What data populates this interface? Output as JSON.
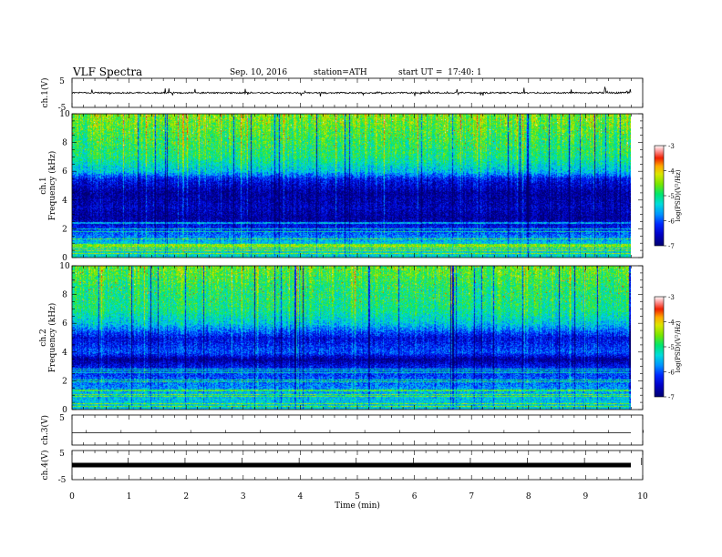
{
  "header": {
    "title": "VLF Spectra",
    "date": "Sep. 10, 2016",
    "station": "station=ATH",
    "start": "start UT =  17:40: 1"
  },
  "chart_data": [
    {
      "type": "line",
      "panel": "ch1-waveform",
      "ylabel": "ch.1(V)",
      "yticks": [
        "5",
        "-5"
      ],
      "ylim": [
        -5,
        5
      ],
      "xlim": [
        0,
        10
      ],
      "description_values": {
        "baseline": 0,
        "typical_amplitude": 0.5,
        "spike_amplitude": 1.5
      }
    },
    {
      "type": "heatmap",
      "panel": "ch1-spectrogram",
      "ylabel": "ch.1\nFrequency (kHz)",
      "ylabel_line1": "ch.1",
      "ylabel_line2": "Frequency (kHz)",
      "yticks": [
        "0",
        "2",
        "4",
        "6",
        "8",
        "10"
      ],
      "ylim": [
        0,
        10
      ],
      "xlim": [
        0,
        9.8
      ],
      "colorbar": {
        "label": "log(PSD)(V²/Hz)",
        "ticks": [
          "-3",
          "-4",
          "-5",
          "-6",
          "-7"
        ],
        "range": [
          -7,
          -3
        ]
      },
      "profile": [
        {
          "f": 0.0,
          "v": -5.3
        },
        {
          "f": 1.0,
          "v": -5.4
        },
        {
          "f": 2.0,
          "v": -6.2
        },
        {
          "f": 2.8,
          "v": -6.8
        },
        {
          "f": 3.5,
          "v": -6.6
        },
        {
          "f": 4.5,
          "v": -6.8
        },
        {
          "f": 5.5,
          "v": -6.3
        },
        {
          "f": 6.0,
          "v": -5.5
        },
        {
          "f": 7.0,
          "v": -5.0
        },
        {
          "f": 8.5,
          "v": -4.8
        },
        {
          "f": 10.0,
          "v": -4.5
        }
      ]
    },
    {
      "type": "heatmap",
      "panel": "ch2-spectrogram",
      "ylabel": "ch.2\nFrequency (kHz)",
      "ylabel_line1": "ch.2",
      "ylabel_line2": "Frequency (kHz)",
      "yticks": [
        "0",
        "2",
        "4",
        "6",
        "8",
        "10"
      ],
      "ylim": [
        0,
        10
      ],
      "xlim": [
        0,
        9.8
      ],
      "colorbar": {
        "label": "log(PSD)(V²/Hz)",
        "ticks": [
          "-3",
          "-4",
          "-5",
          "-6",
          "-7"
        ],
        "range": [
          -7,
          -3
        ]
      },
      "profile": [
        {
          "f": 0.0,
          "v": -5.4
        },
        {
          "f": 1.0,
          "v": -5.5
        },
        {
          "f": 2.0,
          "v": -5.9
        },
        {
          "f": 3.0,
          "v": -6.3
        },
        {
          "f": 3.5,
          "v": -6.8
        },
        {
          "f": 4.0,
          "v": -6.0
        },
        {
          "f": 5.0,
          "v": -6.4
        },
        {
          "f": 6.0,
          "v": -5.4
        },
        {
          "f": 7.0,
          "v": -5.0
        },
        {
          "f": 8.5,
          "v": -4.9
        },
        {
          "f": 10.0,
          "v": -4.6
        }
      ]
    },
    {
      "type": "line",
      "panel": "ch3-waveform",
      "ylabel": "ch.3(V)",
      "yticks": [
        "5"
      ],
      "ylim": [
        -5,
        5
      ],
      "xlim": [
        0,
        10
      ],
      "description_values": {
        "baseline": 0
      }
    },
    {
      "type": "line",
      "panel": "ch4-waveform",
      "ylabel": "ch.4(V)",
      "yticks": [
        "5",
        "-5"
      ],
      "ylim": [
        -5,
        5
      ],
      "xlim": [
        0,
        10
      ],
      "description_values": {
        "baseline": 0
      }
    }
  ],
  "xaxis": {
    "label": "Time (min)",
    "ticks": [
      "0",
      "1",
      "2",
      "3",
      "4",
      "5",
      "6",
      "7",
      "8",
      "9",
      "10"
    ],
    "range": [
      0,
      10
    ]
  },
  "colors": {
    "axis": "#000000",
    "background": "#ffffff"
  }
}
